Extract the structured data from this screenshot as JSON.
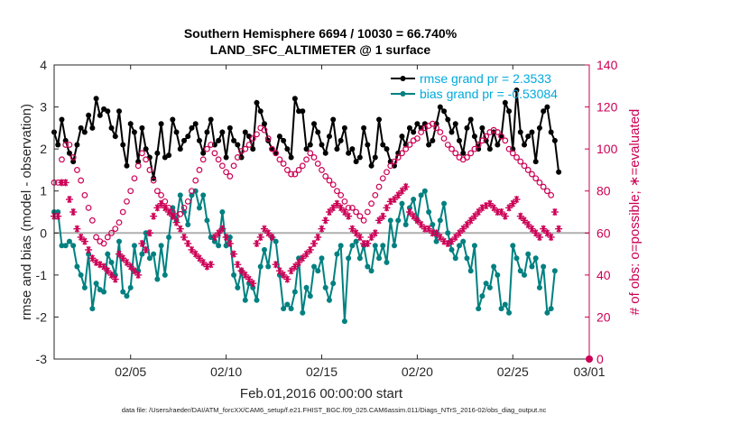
{
  "chart_data": {
    "type": "line",
    "title": "Southern Hemisphere 6694 / 10030 = 66.740%",
    "subtitle": "LAND_SFC_ALTIMETER @ 1 surface",
    "xlabel": "Feb.01,2016 00:00:00 start",
    "ylabel": "rmse and bias (model - observation)",
    "y2label": "# of obs: o=possible; ∗=evaluated",
    "footer": "data file: /Users/raeder/DAI/ATM_forcXX/CAM6_setup/f.e21.FHIST_BGC.f09_025.CAM6assim.011/Diags_NTrS_2016-02/obs_diag_output.nc",
    "xlim": [
      1,
      29
    ],
    "ylim": [
      -3,
      4
    ],
    "y2lim": [
      0,
      140
    ],
    "x_ticks": [
      5,
      10,
      15,
      20,
      25,
      29
    ],
    "x_tick_labels": [
      "02/05",
      "02/10",
      "02/15",
      "02/20",
      "02/25",
      "03/01"
    ],
    "y_ticks": [
      -3,
      -2,
      -1,
      0,
      1,
      2,
      3,
      4
    ],
    "y_tick_labels": [
      "-3",
      "-2",
      "-1",
      "0",
      "1",
      "2",
      "3",
      "4"
    ],
    "y2_ticks": [
      0,
      20,
      40,
      60,
      80,
      100,
      120,
      140
    ],
    "y2_tick_labels": [
      "0",
      "20",
      "40",
      "60",
      "80",
      "100",
      "120",
      "140"
    ],
    "legend_position": "top-right",
    "grid": false,
    "series": [
      {
        "name": "rmse grand pr = 2.3533",
        "color": "#000000",
        "marker": "filled-circle",
        "axis": "left",
        "values": [
          2.4,
          2.1,
          2.7,
          2.2,
          1.9,
          1.7,
          2.1,
          2.5,
          2.4,
          2.8,
          2.5,
          3.2,
          2.8,
          2.95,
          2.9,
          2.5,
          2.3,
          2.9,
          2.1,
          1.6,
          2.6,
          2.4,
          1.7,
          2.5,
          2.0,
          1.8,
          1.3,
          1.9,
          2.6,
          1.8,
          1.85,
          2.7,
          2.4,
          2.0,
          2.2,
          2.3,
          2.5,
          2.6,
          2.2,
          1.9,
          2.4,
          2.7,
          2.1,
          2.2,
          2.4,
          1.8,
          2.5,
          2.2,
          2.1,
          1.8,
          2.4,
          2.3,
          2.0,
          3.1,
          2.9,
          2.6,
          2.2,
          2.0,
          1.9,
          2.3,
          2.2,
          2.0,
          1.8,
          3.2,
          2.9,
          2.9,
          2.0,
          2.1,
          2.6,
          2.4,
          2.1,
          1.9,
          2.3,
          2.7,
          2.0,
          2.2,
          2.5,
          1.9,
          2.0,
          1.7,
          1.8,
          2.5,
          2.1,
          1.6,
          1.8,
          2.7,
          2.1,
          2.0,
          1.7,
          1.6,
          1.9,
          2.3,
          2.1,
          2.5,
          2.4,
          2.6,
          2.5,
          2.6,
          2.1,
          2.2,
          2.6,
          3.0,
          2.9,
          2.7,
          2.4,
          2.6,
          2.2,
          1.9,
          2.5,
          2.7,
          2.3,
          2.0,
          2.5,
          2.2,
          2.0,
          2.4,
          2.1,
          2.3,
          3.1,
          2.9,
          2.0,
          3.4,
          2.4,
          2.1,
          2.3,
          2.4,
          1.7,
          2.5,
          2.9,
          3.0,
          2.4,
          2.2,
          1.45
        ],
        "markers_every_x": 0.2
      },
      {
        "name": "bias grand pr = -0.53084",
        "color": "#008080",
        "marker": "filled-circle",
        "axis": "left",
        "values": [
          0.5,
          0.5,
          -0.3,
          -0.3,
          -0.2,
          -0.3,
          -0.8,
          -1.0,
          -1.3,
          -0.5,
          -1.8,
          -1.2,
          -1.35,
          -1.4,
          -0.5,
          -0.7,
          -1.0,
          -0.2,
          -1.4,
          -1.5,
          -1.3,
          -0.3,
          -0.9,
          -0.5,
          0.0,
          -0.6,
          -0.5,
          -1.1,
          -0.3,
          -1.0,
          -0.1,
          0.6,
          0.3,
          0.9,
          0.5,
          0.2,
          0.9,
          1.0,
          0.6,
          0.9,
          0.3,
          -0.1,
          -0.2,
          -0.3,
          0.5,
          -0.3,
          -0.1,
          -1.0,
          -1.3,
          -0.9,
          -1.6,
          -1.2,
          -1.3,
          -1.6,
          -0.8,
          -0.4,
          -0.8,
          -0.1,
          -0.2,
          -1.0,
          -1.8,
          -1.7,
          -1.8,
          -1.4,
          -0.6,
          -1.9,
          -1.3,
          -1.5,
          -0.8,
          -0.9,
          -0.6,
          -1.3,
          -1.6,
          -1.2,
          -0.5,
          -0.3,
          -2.1,
          -0.6,
          -0.3,
          -0.2,
          -0.6,
          -0.3,
          -0.8,
          -0.9,
          -0.3,
          -0.6,
          -0.3,
          -0.7,
          0.3,
          -0.3,
          0.3,
          0.7,
          0.2,
          0.6,
          0.8,
          0.3,
          0.9,
          1.0,
          0.5,
          0.2,
          -0.2,
          0.3,
          0.7,
          0.0,
          -0.4,
          -0.6,
          -0.3,
          -0.2,
          -0.6,
          -0.9,
          -0.3,
          -1.8,
          -1.5,
          -1.2,
          -1.3,
          -0.8,
          -1.0,
          -1.8,
          -1.7,
          -1.9,
          -0.3,
          -0.6,
          -0.9,
          -1.0,
          -0.5,
          -0.8,
          -0.6,
          -1.3,
          -0.8,
          -1.9,
          -1.8,
          -0.9
        ],
        "markers_every_x": 0.2
      },
      {
        "name": "possible",
        "color": "#cc0055",
        "marker": "open-circle",
        "axis": "right",
        "values": [
          84,
          84,
          95,
          102,
          102,
          96,
          90,
          85,
          78,
          72,
          66,
          58,
          56,
          55,
          58,
          60,
          62,
          65,
          70,
          75,
          80,
          86,
          92,
          98,
          95,
          90,
          85,
          80,
          78,
          75,
          72,
          70,
          68,
          69,
          72,
          75,
          80,
          85,
          90,
          95,
          100,
          102,
          98,
          95,
          92,
          89,
          87,
          92,
          96,
          99,
          100,
          102,
          105,
          107,
          110,
          109,
          105,
          100,
          98,
          95,
          93,
          90,
          88,
          88,
          90,
          92,
          95,
          98,
          96,
          93,
          90,
          87,
          85,
          83,
          80,
          78,
          75,
          72,
          72,
          70,
          68,
          66,
          70,
          74,
          78,
          82,
          86,
          89,
          92,
          94,
          96,
          98,
          100,
          102,
          104,
          105,
          108,
          110,
          111,
          112,
          110,
          108,
          105,
          102,
          100,
          98,
          96,
          95,
          96,
          98,
          100,
          102,
          104,
          106,
          108,
          109,
          108,
          106,
          104,
          100,
          98,
          96,
          94,
          92,
          90,
          88,
          86,
          84,
          82,
          80,
          78
        ],
        "markers_every_x": 0.2
      },
      {
        "name": "evaluated",
        "color": "#cc0055",
        "marker": "asterisk",
        "axis": "right",
        "values": [
          68,
          68,
          84,
          84,
          76,
          70,
          62,
          58,
          56,
          52,
          48,
          46,
          45,
          44,
          42,
          40,
          38,
          50,
          48,
          46,
          44,
          42,
          40,
          55,
          52,
          60,
          68,
          72,
          74,
          72,
          70,
          68,
          65,
          62,
          58,
          55,
          52,
          50,
          48,
          46,
          44,
          45,
          58,
          60,
          62,
          58,
          55,
          50,
          45,
          42,
          40,
          38,
          36,
          55,
          58,
          62,
          60,
          58,
          45,
          42,
          40,
          38,
          42,
          44,
          46,
          48,
          50,
          52,
          55,
          58,
          62,
          66,
          70,
          72,
          74,
          72,
          70,
          68,
          62,
          60,
          58,
          55,
          55,
          58,
          60,
          66,
          68,
          72,
          75,
          76,
          78,
          80,
          82,
          70,
          68,
          66,
          64,
          62,
          62,
          60,
          60,
          58,
          56,
          55,
          56,
          58,
          60,
          62,
          64,
          66,
          68,
          70,
          72,
          73,
          74,
          72,
          70,
          70,
          68,
          72,
          74,
          76,
          68,
          66,
          64,
          62,
          60,
          58,
          62,
          60,
          58,
          70,
          62
        ],
        "markers_every_x": 0.2
      }
    ]
  }
}
